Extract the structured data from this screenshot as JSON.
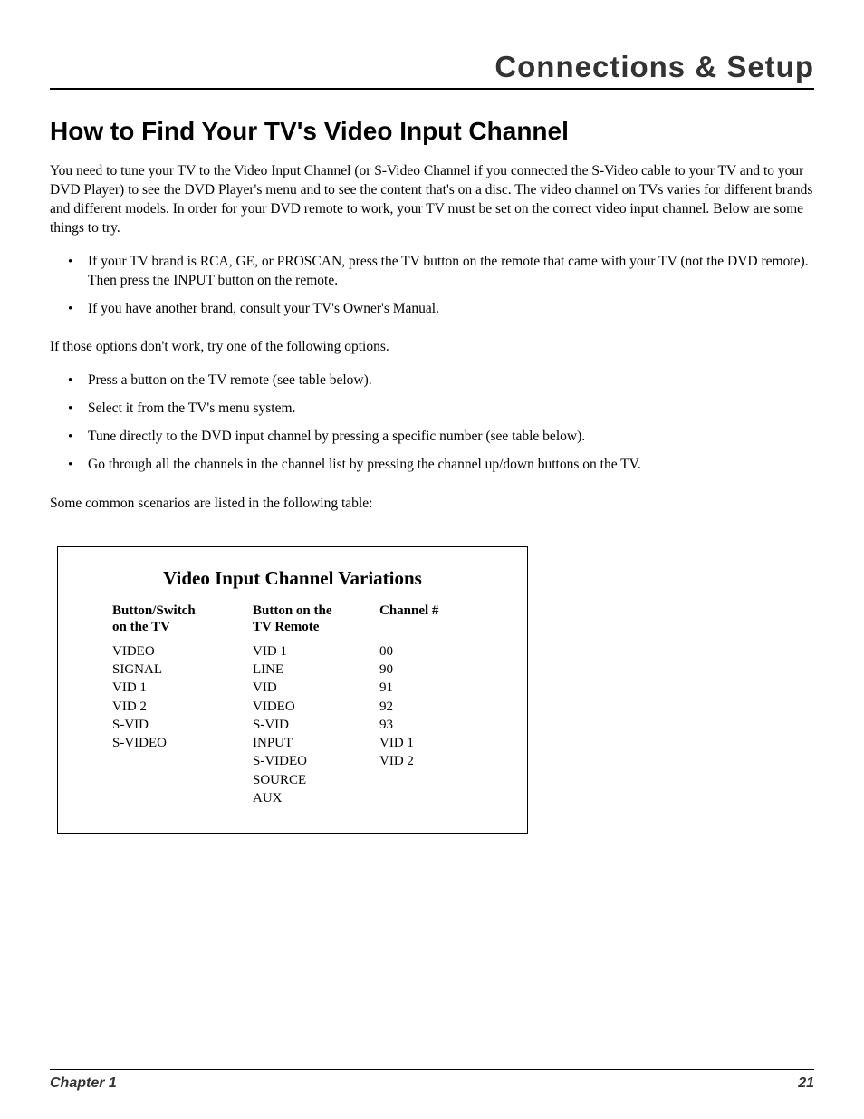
{
  "header": {
    "section": "Connections & Setup"
  },
  "title": "How to Find Your TV's Video Input Channel",
  "intro": "You need to tune your TV to the Video Input Channel (or S-Video Channel if you connected the        S-Video cable to your TV and to your DVD Player) to see the DVD Player's menu and to see the content that's on a disc. The video channel on TVs varies for different brands and different models. In order for your DVD remote to work, your TV must be set on the correct video input channel. Below are some things to try.",
  "bullets_a": [
    "If your TV brand is RCA, GE, or PROSCAN, press the TV button on the remote that came with your TV (not the DVD remote). Then press the INPUT button on the remote.",
    "If you have another brand, consult your TV's Owner's Manual."
  ],
  "mid_text": "If those options don't work, try one of the following options.",
  "bullets_b": [
    "Press a button on the TV remote (see table below).",
    "Select it from the TV's menu system.",
    "Tune directly to the DVD input channel by pressing a specific number (see table below).",
    "Go through all the channels in the channel list by pressing the channel up/down buttons on the TV."
  ],
  "outro": "Some common scenarios are listed in the following table:",
  "table": {
    "title": "Video Input Channel Variations",
    "columns": [
      "Button/Switch on the TV",
      "Button on the TV Remote",
      "Channel #"
    ],
    "col1": [
      "VIDEO",
      "SIGNAL",
      "VID 1",
      "VID 2",
      "S-VID",
      "S-VIDEO"
    ],
    "col2": [
      "VID 1",
      "LINE",
      "VID",
      "VIDEO",
      "S-VID",
      "INPUT",
      "S-VIDEO",
      "SOURCE",
      "AUX"
    ],
    "col3": [
      "00",
      "90",
      "91",
      "92",
      "93",
      "VID 1",
      "VID 2"
    ]
  },
  "footer": {
    "chapter": "Chapter 1",
    "page": "21"
  }
}
